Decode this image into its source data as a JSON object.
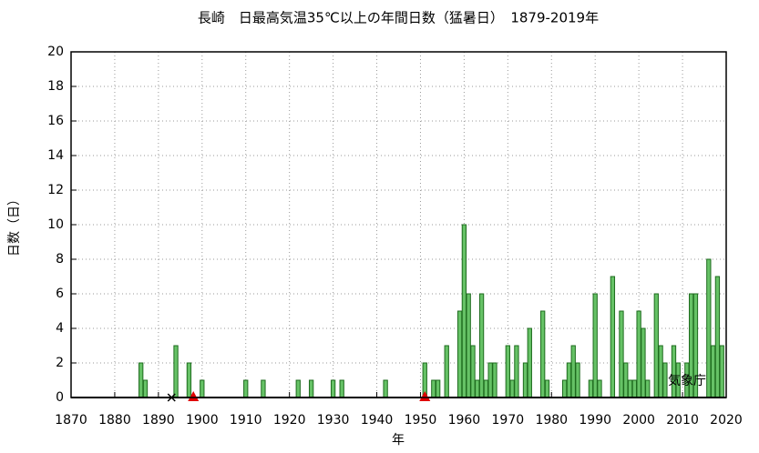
{
  "chart_data": {
    "type": "bar",
    "title": "長崎　日最高気温35℃以上の年間日数（猛暑日）　1879-2019年",
    "x_label": "年",
    "y_label": "日数（日）",
    "annotation": "気象庁",
    "x": [
      1886,
      1887,
      1894,
      1897,
      1900,
      1910,
      1914,
      1922,
      1925,
      1930,
      1932,
      1942,
      1951,
      1953,
      1954,
      1956,
      1959,
      1960,
      1961,
      1962,
      1963,
      1964,
      1965,
      1966,
      1967,
      1970,
      1971,
      1972,
      1974,
      1975,
      1978,
      1979,
      1983,
      1984,
      1985,
      1986,
      1989,
      1990,
      1991,
      1994,
      1996,
      1997,
      1998,
      1999,
      2000,
      2001,
      2002,
      2004,
      2005,
      2006,
      2008,
      2009,
      2011,
      2012,
      2013,
      2016,
      2017,
      2018,
      2019
    ],
    "values": [
      2,
      1,
      3,
      2,
      1,
      1,
      1,
      1,
      1,
      1,
      1,
      1,
      2,
      1,
      1,
      3,
      5,
      10,
      6,
      3,
      1,
      6,
      1,
      2,
      2,
      3,
      1,
      3,
      2,
      4,
      5,
      1,
      1,
      2,
      3,
      2,
      1,
      6,
      1,
      7,
      5,
      2,
      1,
      1,
      5,
      4,
      1,
      6,
      3,
      2,
      3,
      2,
      2,
      6,
      6,
      8,
      3,
      7,
      3
    ],
    "color": "#66c266",
    "markers": [
      {
        "x": 1893,
        "y": 0,
        "shape": "cross",
        "color": "#000000"
      },
      {
        "x": 1898,
        "y": 0,
        "shape": "triangle",
        "color": "#e00000"
      },
      {
        "x": 1951,
        "y": 0,
        "shape": "triangle",
        "color": "#e00000"
      }
    ],
    "xlim": [
      1870,
      2020
    ],
    "xticks": [
      1870,
      1880,
      1890,
      1900,
      1910,
      1920,
      1930,
      1940,
      1950,
      1960,
      1970,
      1980,
      1990,
      2000,
      2010,
      2020
    ],
    "ylim": [
      0,
      20
    ],
    "yticks": [
      0,
      2,
      4,
      6,
      8,
      10,
      12,
      14,
      16,
      18,
      20
    ],
    "grid": true
  }
}
